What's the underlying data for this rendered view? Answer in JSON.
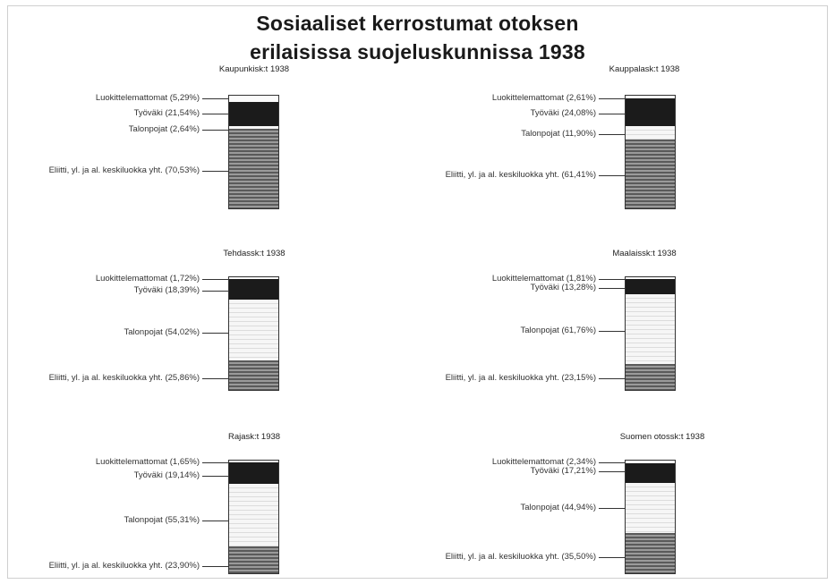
{
  "title_line1": "Sosiaaliset kerrostumat otoksen",
  "title_line2": "erilaisissa suojeluskunnissa 1938",
  "colors": {
    "unclassified": "#fafafa",
    "workers": "#1b1b1b",
    "farmers": "#f1f1f1 striped",
    "elite": "#6e6e6e striped"
  },
  "chart_data": [
    {
      "type": "bar",
      "stacked": true,
      "title": "Kaupunkisk:t 1938",
      "segments": [
        {
          "label": "Luokittelemattomat (5,29%)",
          "value": 5.29
        },
        {
          "label": "Työväki (21,54%)",
          "value": 21.54
        },
        {
          "label": "Talonpojat (2,64%)",
          "value": 2.64
        },
        {
          "label": "Eliitti, yl. ja al. keskiluokka yht. (70,53%)",
          "value": 70.53
        }
      ]
    },
    {
      "type": "bar",
      "stacked": true,
      "title": "Kauppalask:t 1938",
      "segments": [
        {
          "label": "Luokittelemattomat (2,61%)",
          "value": 2.61
        },
        {
          "label": "Työväki (24,08%)",
          "value": 24.08
        },
        {
          "label": "Talonpojat (11,90%)",
          "value": 11.9
        },
        {
          "label": "Eliitti, yl. ja al. keskiluokka yht. (61,41%)",
          "value": 61.41
        }
      ]
    },
    {
      "type": "bar",
      "stacked": true,
      "title": "Tehdassk:t 1938",
      "segments": [
        {
          "label": "Luokittelemattomat (1,72%)",
          "value": 1.72
        },
        {
          "label": "Työväki (18,39%)",
          "value": 18.39
        },
        {
          "label": "Talonpojat (54,02%)",
          "value": 54.02
        },
        {
          "label": "Eliitti, yl. ja al. keskiluokka yht. (25,86%)",
          "value": 25.86
        }
      ]
    },
    {
      "type": "bar",
      "stacked": true,
      "title": "Maalaissk:t 1938",
      "segments": [
        {
          "label": "Luokittelemattomat (1,81%)",
          "value": 1.81
        },
        {
          "label": "Työväki (13,28%)",
          "value": 13.28
        },
        {
          "label": "Talonpojat (61,76%)",
          "value": 61.76
        },
        {
          "label": "Eliitti, yl. ja al. keskiluokka yht. (23,15%)",
          "value": 23.15
        }
      ]
    },
    {
      "type": "bar",
      "stacked": true,
      "title": "Rajask:t 1938",
      "segments": [
        {
          "label": "Luokittelemattomat (1,65%)",
          "value": 1.65
        },
        {
          "label": "Työväki (19,14%)",
          "value": 19.14
        },
        {
          "label": "Talonpojat (55,31%)",
          "value": 55.31
        },
        {
          "label": "Eliitti, yl. ja al. keskiluokka yht. (23,90%)",
          "value": 23.9
        }
      ]
    },
    {
      "type": "bar",
      "stacked": true,
      "title": "Suomen otossk:t 1938",
      "segments": [
        {
          "label": "Luokittelemattomat (2,34%)",
          "value": 2.34
        },
        {
          "label": "Työväki (17,21%)",
          "value": 17.21
        },
        {
          "label": "Talonpojat (44,94%)",
          "value": 44.94
        },
        {
          "label": "Eliitti, yl. ja al. keskiluokka yht. (35,50%)",
          "value": 35.5
        }
      ]
    }
  ]
}
